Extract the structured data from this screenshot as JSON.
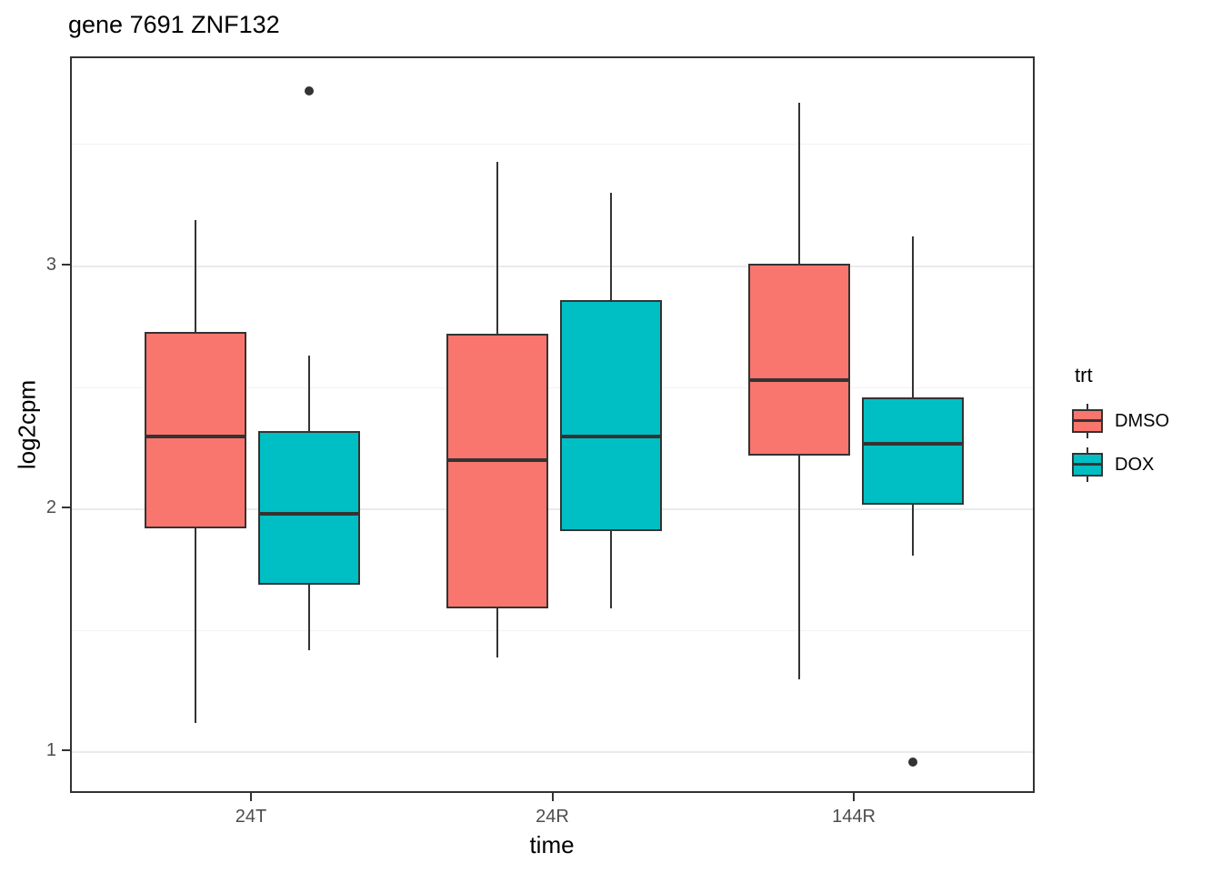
{
  "title": "gene 7691 ZNF132",
  "axes": {
    "y_label": "log2cpm",
    "x_label": "time"
  },
  "legend": {
    "title": "trt",
    "items": [
      {
        "label": "DMSO",
        "color": "#F8766D"
      },
      {
        "label": "DOX",
        "color": "#00BFC4"
      }
    ]
  },
  "colors": {
    "dmso_fill": "#F8766D",
    "dox_fill": "#00BFC4",
    "box_outline": "#333333",
    "grid_major": "#ebebeb",
    "grid_minor": "#f2f2f2",
    "tick_text": "#4d4d4d",
    "outlier": "#333333",
    "background": "#ffffff"
  },
  "chart_data": {
    "type": "boxplot",
    "title": "gene 7691 ZNF132",
    "xlabel": "time",
    "ylabel": "log2cpm",
    "categories": [
      "24T",
      "24R",
      "144R"
    ],
    "ylim": [
      0.825,
      3.855
    ],
    "y_major_ticks": [
      1,
      2,
      3
    ],
    "y_minor_ticks": [
      1.5,
      2.5,
      3.5
    ],
    "grid": true,
    "legend_position": "right",
    "series": [
      {
        "name": "DMSO",
        "color": "#F8766D",
        "boxes": [
          {
            "category": "24T",
            "whisker_low": 1.12,
            "q1": 1.92,
            "median": 2.3,
            "q3": 2.73,
            "whisker_high": 3.19,
            "outliers": []
          },
          {
            "category": "24R",
            "whisker_low": 1.39,
            "q1": 1.59,
            "median": 2.2,
            "q3": 2.72,
            "whisker_high": 3.43,
            "outliers": []
          },
          {
            "category": "144R",
            "whisker_low": 1.3,
            "q1": 2.22,
            "median": 2.53,
            "q3": 3.01,
            "whisker_high": 3.67,
            "outliers": []
          }
        ]
      },
      {
        "name": "DOX",
        "color": "#00BFC4",
        "boxes": [
          {
            "category": "24T",
            "whisker_low": 1.42,
            "q1": 1.69,
            "median": 1.98,
            "q3": 2.32,
            "whisker_high": 2.63,
            "outliers": [
              3.72
            ]
          },
          {
            "category": "24R",
            "whisker_low": 1.59,
            "q1": 1.91,
            "median": 2.3,
            "q3": 2.86,
            "whisker_high": 3.3,
            "outliers": []
          },
          {
            "category": "144R",
            "whisker_low": 1.81,
            "q1": 2.02,
            "median": 2.27,
            "q3": 2.46,
            "whisker_high": 3.12,
            "outliers": [
              0.96
            ]
          }
        ]
      }
    ]
  }
}
